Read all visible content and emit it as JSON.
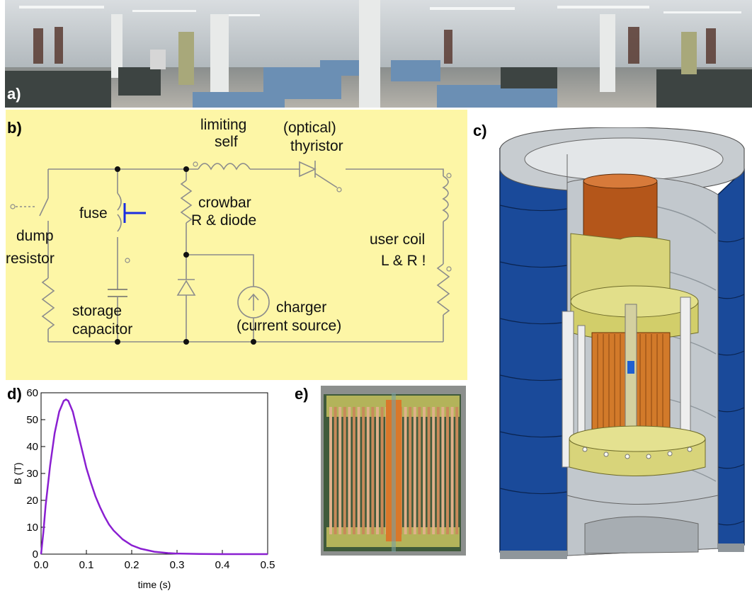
{
  "panels": {
    "a": {
      "label": "a)"
    },
    "b": {
      "label": "b)",
      "components": {
        "limiting_self": [
          "limiting",
          "self"
        ],
        "thyristor": [
          "(optical)",
          "thyristor"
        ],
        "crowbar": [
          "crowbar",
          "R & diode"
        ],
        "fuse": "fuse",
        "dump_resistor": [
          "dump",
          "resistor"
        ],
        "user_coil": [
          "user coil",
          "L & R !"
        ],
        "storage_capacitor": [
          "storage",
          "capacitor"
        ],
        "charger": [
          "charger",
          "(current source)"
        ]
      }
    },
    "c": {
      "label": "c)"
    },
    "d": {
      "label": "d)"
    },
    "e": {
      "label": "e)"
    }
  },
  "colors": {
    "circuit_bg": "#fdf6a6",
    "wire": "#8c8c8c",
    "fuse": "#1a2ee0",
    "curve": "#8a1fd1",
    "coil_blue": "#1a4a9a",
    "coil_steel": "#b8bfc6",
    "coil_copper": "#b4561a",
    "coil_yellow": "#d8d47a"
  },
  "chart_data": {
    "type": "line",
    "xlabel": "time (s)",
    "ylabel": "B (T)",
    "xlim": [
      0,
      0.5
    ],
    "ylim": [
      0,
      60
    ],
    "xticks": [
      "0.0",
      "0.1",
      "0.2",
      "0.3",
      "0.4",
      "0.5"
    ],
    "yticks": [
      "0",
      "10",
      "20",
      "30",
      "40",
      "50",
      "60"
    ],
    "series": [
      {
        "x": [
          0,
          0.005,
          0.01,
          0.02,
          0.03,
          0.04,
          0.05,
          0.055,
          0.06,
          0.07,
          0.08,
          0.09,
          0.1,
          0.11,
          0.12,
          0.13,
          0.14,
          0.15,
          0.16,
          0.18,
          0.2,
          0.22,
          0.25,
          0.28,
          0.3,
          0.35,
          0.4,
          0.5
        ],
        "values": [
          0,
          8,
          18,
          33,
          45,
          53,
          57,
          57.5,
          57,
          53,
          46,
          39,
          32,
          26.5,
          21.5,
          17.5,
          14,
          11,
          8.8,
          5.5,
          3.3,
          2,
          0.9,
          0.4,
          0.2,
          0.05,
          0,
          0
        ]
      }
    ]
  }
}
